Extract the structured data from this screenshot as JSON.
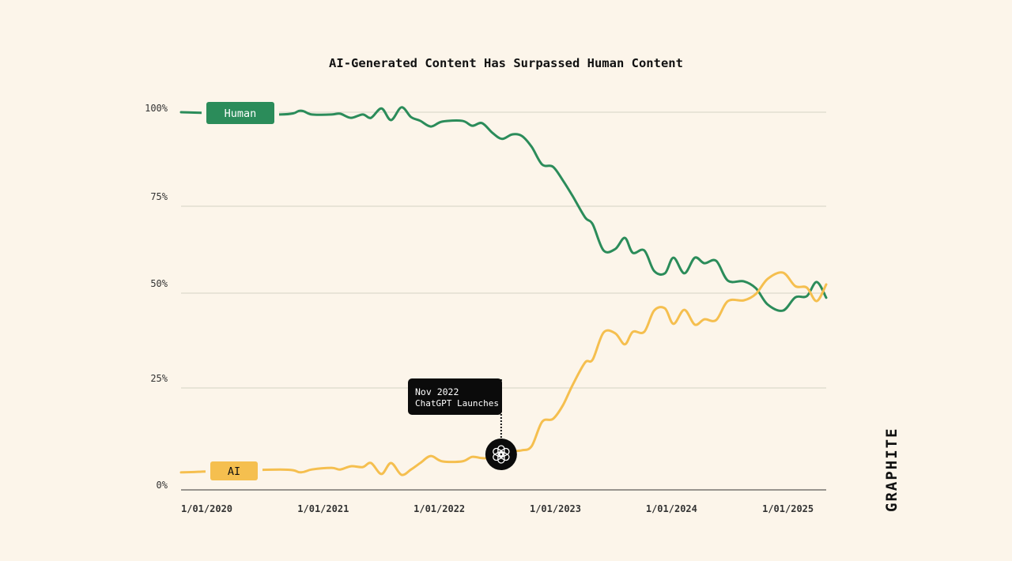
{
  "chart_data": {
    "type": "line",
    "title": "AI-Generated Content Has Surpassed Human Content",
    "xlabel": "",
    "ylabel": "",
    "ylim": [
      0,
      100
    ],
    "xlim": [
      "2020-01-01",
      "2025-07-21"
    ],
    "grid": "horizontal",
    "y_ticks": [
      {
        "value": 100,
        "label": "100%"
      },
      {
        "value": 75,
        "label": "75%"
      },
      {
        "value": 50,
        "label": "50%"
      },
      {
        "value": 25,
        "label": "25%"
      },
      {
        "value": 0,
        "label": "0%"
      }
    ],
    "x_ticks": [
      {
        "date": "2020-01-01",
        "label": "1/01/2020"
      },
      {
        "date": "2021-01-01",
        "label": "1/01/2021"
      },
      {
        "date": "2022-01-01",
        "label": "1/01/2022"
      },
      {
        "date": "2023-01-01",
        "label": "1/01/2023"
      },
      {
        "date": "2024-01-01",
        "label": "1/01/2024"
      },
      {
        "date": "2025-01-01",
        "label": "1/01/2025"
      }
    ],
    "x": [
      "2020-01-01",
      "2020-11-08",
      "2021-01-10",
      "2021-02-15",
      "2021-04-18",
      "2021-05-15",
      "2021-06-18",
      "2021-07-25",
      "2021-08-20",
      "2021-09-22",
      "2021-10-22",
      "2021-11-24",
      "2021-12-24",
      "2022-01-22",
      "2022-02-24",
      "2022-04-01",
      "2022-06-03",
      "2022-07-04",
      "2022-08-04",
      "2022-09-06",
      "2022-10-06",
      "2022-11-07",
      "2022-12-07",
      "2023-01-07",
      "2023-02-09",
      "2023-03-15",
      "2023-04-15",
      "2023-05-16",
      "2023-06-24",
      "2023-07-18",
      "2023-08-21",
      "2023-09-27",
      "2023-10-27",
      "2023-11-21",
      "2023-12-27",
      "2024-01-27",
      "2024-03-01",
      "2024-03-28",
      "2024-05-01",
      "2024-06-03",
      "2024-07-03",
      "2024-08-09",
      "2024-09-15",
      "2024-11-04",
      "2024-12-12",
      "2025-01-18",
      "2025-03-07",
      "2025-04-15",
      "2025-05-21",
      "2025-06-21",
      "2025-07-21"
    ],
    "series": [
      {
        "name": "Human",
        "color": "#2b8c5a",
        "values": [
          100,
          99.4,
          100.4,
          99.4,
          99.4,
          99.6,
          98.5,
          99.4,
          98.5,
          101,
          97.9,
          101.3,
          98.7,
          97.7,
          96.2,
          97.5,
          97.7,
          96.4,
          97.1,
          94.5,
          92.9,
          94.1,
          93.7,
          90.8,
          86.1,
          85.5,
          81.9,
          77.7,
          71.8,
          69.8,
          62.3,
          62.7,
          65.9,
          61.6,
          62.3,
          56.4,
          55.7,
          60.2,
          55.7,
          60.2,
          58.6,
          59.3,
          53.6,
          53.4,
          51.4,
          47.0,
          45.4,
          48.9,
          49.2,
          53.2,
          48.8
        ]
      },
      {
        "name": "AI",
        "color": "#f5bf4f",
        "values": [
          4.3,
          5.0,
          4.3,
          5.0,
          5.4,
          5.0,
          5.8,
          5.6,
          6.6,
          3.9,
          6.6,
          3.7,
          5.0,
          6.6,
          8.3,
          7.0,
          7.0,
          8.1,
          7.8,
          7.8,
          8.9,
          9.5,
          9.7,
          10.7,
          16.7,
          17.4,
          20.7,
          25.8,
          31.7,
          32.5,
          39.6,
          39.4,
          36.5,
          39.8,
          39.8,
          45.4,
          46.0,
          41.9,
          45.6,
          41.7,
          43.1,
          42.9,
          47.9,
          48.1,
          49.8,
          54.1,
          55.9,
          52.0,
          51.6,
          47.9,
          52.5
        ]
      }
    ],
    "annotation": {
      "date": "2022-11-07",
      "line1": "Nov 2022",
      "line2": "ChatGPT Launches",
      "icon": "openai-logo-icon"
    }
  },
  "colors": {
    "background": "#fcf5ea",
    "grid": "#d3d2c4",
    "annotation_bg": "#0b0b0b"
  },
  "logo": {
    "text": "GRAPHITE"
  }
}
